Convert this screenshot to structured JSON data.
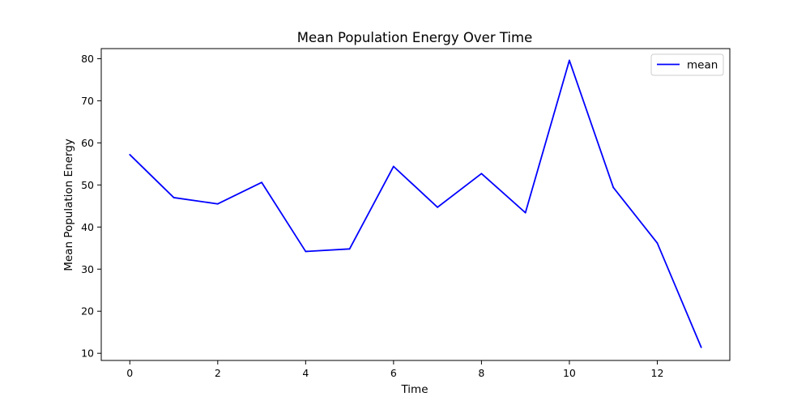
{
  "chart_data": {
    "type": "line",
    "title": "Mean Population Energy Over Time",
    "xlabel": "Time",
    "ylabel": "Mean Population Energy",
    "xlim": [
      -0.65,
      13.65
    ],
    "ylim": [
      8.3,
      82.4
    ],
    "x_ticks": [
      0,
      2,
      4,
      6,
      8,
      10,
      12
    ],
    "y_ticks": [
      10,
      20,
      30,
      40,
      50,
      60,
      70,
      80
    ],
    "grid": false,
    "legend_position": "top-right",
    "series": [
      {
        "name": "mean",
        "color": "#0000ff",
        "x": [
          0,
          1,
          2,
          3,
          4,
          5,
          6,
          7,
          8,
          9,
          10,
          11,
          12,
          13
        ],
        "y": [
          57.2,
          47.0,
          45.5,
          50.6,
          34.2,
          34.8,
          54.4,
          44.7,
          52.7,
          43.4,
          79.6,
          49.4,
          36.2,
          11.4
        ]
      }
    ]
  }
}
